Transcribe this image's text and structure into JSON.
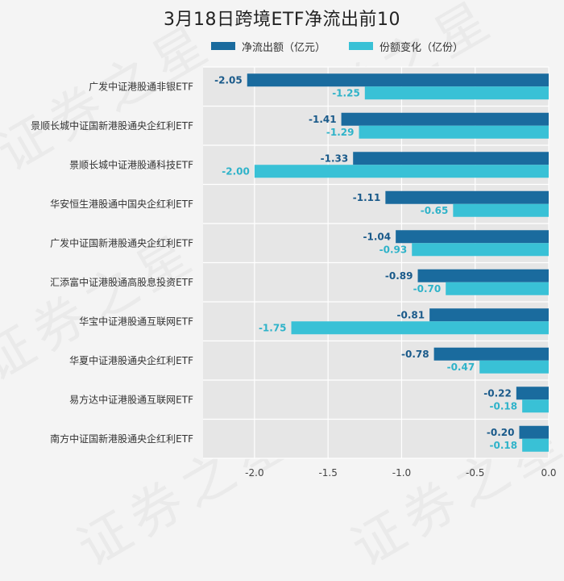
{
  "chart_data": {
    "type": "bar",
    "title": "3月18日跨境ETF净流出前10",
    "categories": [
      "广发中证港股通非银ETF",
      "景顺长城中证国新港股通央企红利ETF",
      "景顺长城中证港股通科技ETF",
      "华安恒生港股通中国央企红利ETF",
      "广发中证国新港股通央企红利ETF",
      "汇添富中证港股通高股息投资ETF",
      "华宝中证港股通互联网ETF",
      "华夏中证港股通央企红利ETF",
      "易方达中证港股通互联网ETF",
      "南方中证国新港股通央企红利ETF"
    ],
    "series": [
      {
        "name": "净流出额（亿元）",
        "color": "#1a6b9e",
        "labelColor": "#1a5a8a",
        "values": [
          -2.05,
          -1.41,
          -1.33,
          -1.11,
          -1.04,
          -0.89,
          -0.81,
          -0.78,
          -0.22,
          -0.2
        ],
        "labels": [
          "-2.05",
          "-1.41",
          "-1.33",
          "-1.11",
          "-1.04",
          "-0.89",
          "-0.81",
          "-0.78",
          "-0.22",
          "-0.20"
        ]
      },
      {
        "name": "份额变化（亿份）",
        "color": "#39c1d6",
        "labelColor": "#2fb3c9",
        "values": [
          -1.25,
          -1.29,
          -2.0,
          -0.65,
          -0.93,
          -0.7,
          -1.75,
          -0.47,
          -0.18,
          -0.18
        ],
        "labels": [
          "-1.25",
          "-1.29",
          "-2.00",
          "-0.65",
          "-0.93",
          "-0.70",
          "-1.75",
          "-0.47",
          "-0.18",
          "-0.18"
        ]
      }
    ],
    "xlim": [
      -2.35,
      0.0
    ],
    "xticks": [
      -2.0,
      -1.5,
      -1.0,
      -0.5,
      0.0
    ],
    "xtick_labels": [
      "-2.0",
      "-1.5",
      "-1.0",
      "-0.5",
      "0.0"
    ],
    "legend": "top",
    "grid": true,
    "xlabel": "",
    "ylabel": ""
  },
  "watermark": {
    "text": "证券之星"
  }
}
